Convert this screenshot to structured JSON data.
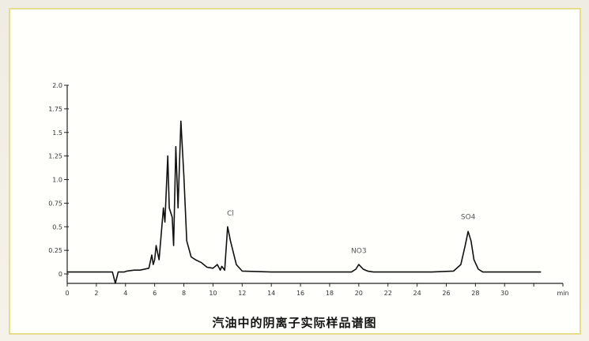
{
  "caption": "汽油中的阴离子实际样品谱图",
  "chart_data": {
    "type": "line",
    "title": "",
    "xlabel": "min",
    "ylabel": "",
    "xlim": [
      0,
      34
    ],
    "ylim": [
      0,
      2.0
    ],
    "x_ticks": [
      0,
      2,
      4,
      6,
      8,
      10,
      12,
      14,
      16,
      18,
      20,
      22,
      24,
      26,
      28,
      30,
      32,
      34
    ],
    "x_tick_labels": [
      "0",
      "2",
      "4",
      "6",
      "8",
      "10",
      "12",
      "14",
      "16",
      "18",
      "20",
      "22",
      "24",
      "26",
      "28",
      "30",
      "",
      "min"
    ],
    "y_ticks": [
      0,
      0.25,
      0.5,
      0.75,
      1.0,
      1.25,
      1.5,
      1.75,
      2.0
    ],
    "y_tick_labels": [
      "0",
      "0.25",
      "0.5",
      "0.75",
      "1.0",
      "1.25",
      "1.5",
      "1.75",
      "2.0"
    ],
    "series": [
      {
        "x": [
          0,
          2,
          3.1,
          3.3,
          3.5,
          3.9,
          4.1,
          4.6,
          5.0,
          5.6,
          5.8,
          5.9,
          6.0,
          6.1,
          6.3,
          6.6,
          6.7,
          6.9,
          7.0,
          7.2,
          7.3,
          7.45,
          7.6,
          7.8,
          8.0,
          8.2,
          8.5,
          8.8,
          9.2,
          9.6,
          10.0,
          10.3,
          10.5,
          10.6,
          10.8,
          11.0,
          11.2,
          11.6,
          12,
          14,
          16,
          18,
          19.5,
          19.8,
          20.0,
          20.3,
          20.6,
          21,
          23,
          25,
          26.5,
          27.0,
          27.3,
          27.5,
          27.7,
          27.9,
          28.2,
          28.5,
          28.8,
          29,
          31,
          32.5
        ],
        "y": [
          0.02,
          0.02,
          0.02,
          -0.1,
          0.02,
          0.02,
          0.03,
          0.04,
          0.04,
          0.06,
          0.2,
          0.1,
          0.15,
          0.3,
          0.15,
          0.7,
          0.55,
          1.25,
          0.7,
          0.6,
          0.3,
          1.35,
          0.7,
          1.62,
          1.05,
          0.35,
          0.18,
          0.15,
          0.12,
          0.07,
          0.06,
          0.1,
          0.04,
          0.08,
          0.04,
          0.5,
          0.35,
          0.1,
          0.03,
          0.02,
          0.02,
          0.02,
          0.02,
          0.05,
          0.1,
          0.05,
          0.03,
          0.02,
          0.02,
          0.02,
          0.03,
          0.1,
          0.3,
          0.45,
          0.35,
          0.15,
          0.05,
          0.02,
          0.02,
          0.02,
          0.02,
          0.02
        ]
      }
    ],
    "annotations": [
      {
        "text": "Cl",
        "x": 11.2,
        "y": 0.62
      },
      {
        "text": "NO3",
        "x": 20.0,
        "y": 0.22
      },
      {
        "text": "SO4",
        "x": 27.5,
        "y": 0.58
      }
    ]
  }
}
